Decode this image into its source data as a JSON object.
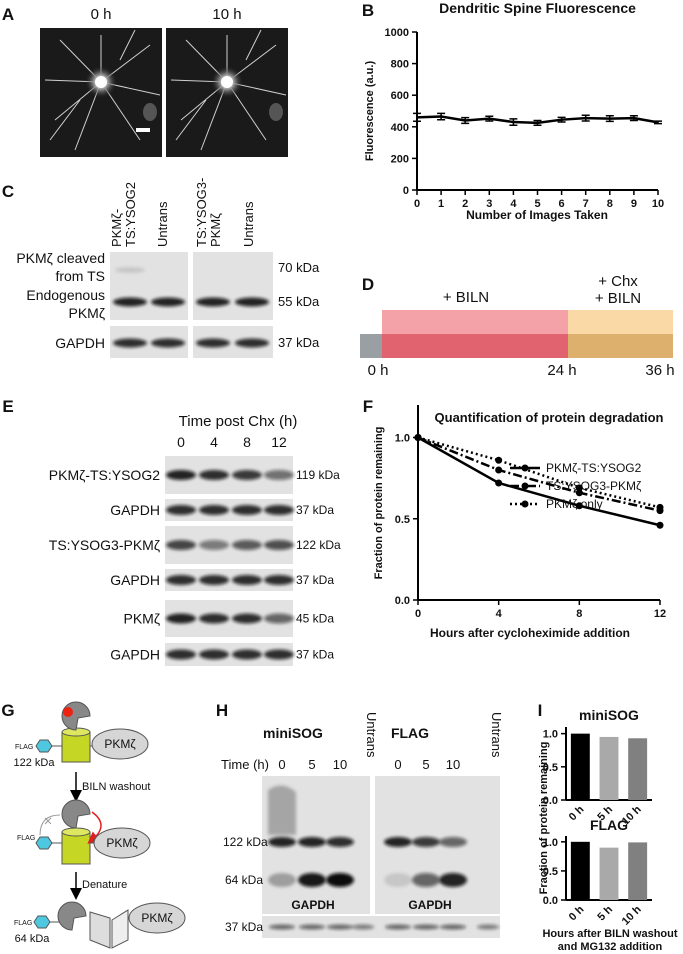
{
  "panel_labels": [
    "A",
    "B",
    "C",
    "D",
    "E",
    "F",
    "G",
    "H",
    "I"
  ],
  "panel_a": {
    "time_labels": [
      "0 h",
      "10 h"
    ]
  },
  "panel_c": {
    "columns": [
      [
        "PKMζ-",
        "TS:YSOG2"
      ],
      [
        "Untrans"
      ],
      [
        "TS:YSOG3-",
        "PKMζ"
      ],
      [
        "Untrans"
      ]
    ],
    "row_labels": [
      [
        "PKMζ cleaved",
        "from TS"
      ],
      [
        "Endogenous",
        "PKMζ"
      ],
      [
        "GAPDH"
      ]
    ],
    "sizes": [
      "70 kDa",
      "55 kDa",
      "37 kDa"
    ]
  },
  "panel_d": {
    "phase_labels": [
      [
        "+ BILN"
      ],
      [
        "+ Chx",
        "+ BILN"
      ]
    ],
    "time_labels": [
      "0 h",
      "24 h",
      "36 h"
    ]
  },
  "panel_e": {
    "header": "Time post Chx (h)",
    "times": [
      "0",
      "4",
      "8",
      "12"
    ],
    "rows": [
      {
        "label": "PKMζ-TS:YSOG2",
        "size": "119 kDa"
      },
      {
        "label": "GAPDH",
        "size": "37 kDa"
      },
      {
        "label": "TS:YSOG3-PKMζ",
        "size": "122 kDa"
      },
      {
        "label": "GAPDH",
        "size": "37 kDa"
      },
      {
        "label": "PKMζ",
        "size": "45 kDa"
      },
      {
        "label": "GAPDH",
        "size": "37 kDa"
      }
    ]
  },
  "panel_g": {
    "flag_labels": [
      "FLAG",
      "FLAG",
      "FLAG"
    ],
    "protein_labels": [
      "PKMζ",
      "PKMζ",
      "PKMζ"
    ],
    "sizes": [
      "122 kDa",
      "64 kDa"
    ],
    "steps": [
      "BILN washout",
      "Denature"
    ]
  },
  "panel_h": {
    "time_header": "Time  (h)",
    "sizes": [
      "122 kDa",
      "64 kDa",
      "37 kDa"
    ],
    "groups": [
      {
        "label": "miniSOG",
        "times": [
          "0",
          "5",
          "10"
        ],
        "control": "Untrans",
        "loading": "GAPDH"
      },
      {
        "label": "FLAG",
        "times": [
          "0",
          "5",
          "10"
        ],
        "control": "Untrans",
        "loading": "GAPDH"
      }
    ]
  },
  "chart_data": [
    {
      "type": "line",
      "title": "Dendritic Spine Fluorescence",
      "x_label": "Number of Images Taken",
      "y_label": "Fluorescence (a.u.)",
      "x": [
        0,
        1,
        2,
        3,
        4,
        5,
        6,
        7,
        8,
        9,
        10
      ],
      "values": [
        460,
        465,
        440,
        452,
        430,
        425,
        445,
        455,
        452,
        455,
        428
      ],
      "errors": [
        25,
        20,
        18,
        15,
        20,
        15,
        15,
        18,
        18,
        15,
        8
      ],
      "color": "#000000",
      "xlim": [
        0,
        10
      ],
      "xticks": [
        0,
        1,
        2,
        3,
        4,
        5,
        6,
        7,
        8,
        9,
        10
      ],
      "ylim": [
        0,
        1000
      ],
      "yticks": [
        0,
        200,
        400,
        600,
        800,
        1000
      ]
    },
    {
      "type": "line",
      "title": "Quantification of protein degradation",
      "x_label": "Hours after cycloheximide addition",
      "y_label": "Fraction of protein remaining",
      "x": [
        0,
        4,
        8,
        12
      ],
      "legend": "upper right",
      "series": [
        {
          "name": "PKMζ-TS:YSOG2",
          "color": "#000000",
          "dash": "solid",
          "marker": "circle",
          "values": [
            1.0,
            0.72,
            0.58,
            0.46
          ]
        },
        {
          "name": "TS:YSOG3-PKMζ",
          "color": "#000000",
          "dash": "dashdot",
          "marker": "circle",
          "values": [
            1.0,
            0.8,
            0.66,
            0.55
          ]
        },
        {
          "name": "PKMζ only",
          "color": "#000000",
          "dash": "dotted",
          "marker": "circle",
          "values": [
            1.0,
            0.86,
            0.69,
            0.57
          ]
        }
      ],
      "xlim": [
        0,
        12
      ],
      "xticks": [
        0,
        4,
        8,
        12
      ],
      "ylim": [
        0,
        1.2
      ],
      "yticks": [
        {
          "value": 0,
          "label": "0.0"
        },
        {
          "value": 0.5,
          "label": "0.5"
        },
        {
          "value": 1,
          "label": "1.0"
        }
      ]
    },
    {
      "type": "bar",
      "title": "miniSOG",
      "y_label": "Fraction of protein remaining",
      "categories": [
        "0 h",
        "5 h",
        "10 h"
      ],
      "values": [
        1.0,
        0.95,
        0.93
      ],
      "colors": [
        "#000000",
        "#a9a9a9",
        "#808080"
      ],
      "ylim": [
        0,
        1.1
      ],
      "yticks": [
        {
          "value": 0,
          "label": "0.0"
        },
        {
          "value": 0.5,
          "label": "0.5"
        },
        {
          "value": 1,
          "label": "1.0"
        }
      ]
    },
    {
      "type": "bar",
      "title": "FLAG",
      "x_label": [
        "Hours after BILN washout",
        "and MG132 addition"
      ],
      "categories": [
        "0 h",
        "5 h",
        "10 h"
      ],
      "values": [
        1.0,
        0.9,
        0.99
      ],
      "colors": [
        "#000000",
        "#a9a9a9",
        "#808080"
      ],
      "ylim": [
        0,
        1.1
      ],
      "yticks": [
        {
          "value": 0,
          "label": "0.0"
        },
        {
          "value": 0.5,
          "label": "0.5"
        },
        {
          "value": 1,
          "label": "1.0"
        }
      ]
    }
  ]
}
